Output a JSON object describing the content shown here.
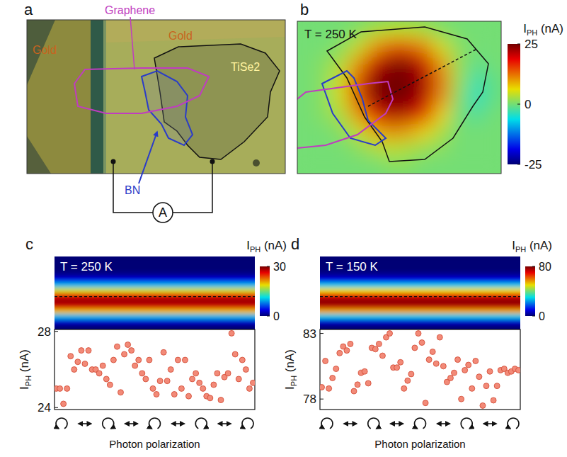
{
  "chart_data": [
    {
      "type": "image",
      "title": "a",
      "annotations": [
        "Graphene",
        "Gold",
        "Gold",
        "TiSe2",
        "BN",
        "A"
      ]
    },
    {
      "type": "heatmap",
      "title": "b",
      "annotations": [
        "T = 250 K"
      ],
      "cells": [
        [
          0,
          0,
          0,
          1,
          3,
          4,
          4,
          3,
          1,
          0,
          0,
          0
        ],
        [
          0,
          0,
          1,
          4,
          10,
          14,
          14,
          11,
          5,
          1,
          0,
          0
        ],
        [
          0,
          1,
          3,
          10,
          20,
          24,
          24,
          20,
          10,
          2,
          -1,
          0
        ],
        [
          0,
          1,
          5,
          14,
          24,
          26,
          26,
          22,
          12,
          2,
          -3,
          -1
        ],
        [
          0,
          1,
          5,
          14,
          24,
          26,
          25,
          21,
          11,
          1,
          -4,
          -1
        ],
        [
          0,
          1,
          3,
          10,
          18,
          22,
          21,
          16,
          7,
          0,
          -2,
          0
        ],
        [
          0,
          0,
          1,
          4,
          9,
          11,
          10,
          7,
          3,
          0,
          0,
          0
        ],
        [
          0,
          0,
          0,
          1,
          3,
          4,
          3,
          2,
          1,
          0,
          0,
          0
        ],
        [
          0,
          0,
          0,
          0,
          0,
          1,
          1,
          0,
          0,
          0,
          0,
          0
        ]
      ],
      "color_range": [
        -25,
        25
      ],
      "color_ticks": [
        -25,
        0,
        25
      ],
      "colorbar_label": {
        "main": "I",
        "sub": "PH",
        "unit": " (nA)"
      }
    },
    {
      "type": "heatmap",
      "title": "c",
      "annotations": [
        "T = 250 K"
      ],
      "cells": [
        [
          0
        ],
        [
          0
        ],
        [
          0
        ],
        [
          1
        ],
        [
          4
        ],
        [
          10
        ],
        [
          18
        ],
        [
          26
        ],
        [
          29
        ],
        [
          27
        ],
        [
          20
        ],
        [
          10
        ],
        [
          3
        ],
        [
          0
        ]
      ],
      "color_range": [
        0,
        30
      ],
      "color_ticks": [
        0,
        30
      ],
      "colorbar_label": {
        "main": "I",
        "sub": "PH",
        "unit": " (nA)"
      }
    },
    {
      "type": "scatter",
      "values": [
        25.0,
        25.0,
        24.2,
        25.0,
        26.7,
        26.0,
        26.4,
        27.0,
        26.3,
        27.0,
        26.0,
        26.0,
        25.8,
        26.2,
        25.5,
        25.2,
        26.5,
        27.2,
        24.8,
        26.8,
        27.3,
        27.0,
        26.2,
        26.5,
        25.8,
        25.5,
        26.5,
        25.0,
        24.7,
        25.4,
        26.9,
        25.4,
        26.0,
        24.7,
        26.5,
        25.0,
        26.5,
        24.6,
        25.5,
        25.8,
        25.3,
        25.0,
        24.6,
        24.5,
        25.2,
        25.8,
        24.4,
        25.6,
        25.8,
        27.9,
        26.8,
        25.5,
        26.5,
        26.0,
        25.0,
        25.3
      ],
      "ylim": [
        23.9,
        28.1
      ],
      "yticks": [
        24,
        28
      ],
      "tick_labels": "y",
      "y_label": {
        "main": "I",
        "sub": "PH",
        "unit": " (nA)"
      },
      "x_label": "Photon polarization",
      "color": "#f28a78",
      "marker": "circle"
    },
    {
      "type": "heatmap",
      "title": "d",
      "annotations": [
        "T = 150 K"
      ],
      "cells": [
        [
          0
        ],
        [
          0
        ],
        [
          0
        ],
        [
          3
        ],
        [
          10
        ],
        [
          28
        ],
        [
          50
        ],
        [
          70
        ],
        [
          79
        ],
        [
          74
        ],
        [
          55
        ],
        [
          28
        ],
        [
          8
        ],
        [
          0
        ]
      ],
      "color_range": [
        0,
        80
      ],
      "color_ticks": [
        0,
        80
      ],
      "colorbar_label": {
        "main": "I",
        "sub": "PH",
        "unit": " (nA)"
      }
    },
    {
      "type": "scatter",
      "values": [
        78.9,
        80.9,
        78.8,
        79.6,
        80.3,
        81.5,
        82.0,
        81.7,
        82.2,
        78.6,
        79.1,
        80.0,
        80.1,
        79.2,
        81.9,
        81.8,
        82.2,
        81.3,
        82.7,
        83.0,
        80.4,
        80.4,
        80.8,
        78.8,
        79.4,
        79.9,
        81.9,
        83.0,
        82.3,
        77.7,
        81.0,
        81.6,
        80.7,
        82.7,
        80.5,
        79.3,
        79.6,
        80.0,
        81.0,
        78.0,
        80.2,
        80.6,
        78.8,
        80.9,
        79.7,
        77.5,
        79.0,
        80.1,
        77.9,
        79.0,
        80.2,
        80.3,
        80.0,
        80.1,
        80.3,
        80.2
      ],
      "ylim": [
        77.2,
        83.3
      ],
      "yticks": [
        78,
        83
      ],
      "tick_labels": "y",
      "y_label": {
        "main": "I",
        "sub": "PH",
        "unit": " (nA)"
      },
      "x_label": "Photon polarization",
      "color": "#f28a78",
      "marker": "circle"
    }
  ]
}
